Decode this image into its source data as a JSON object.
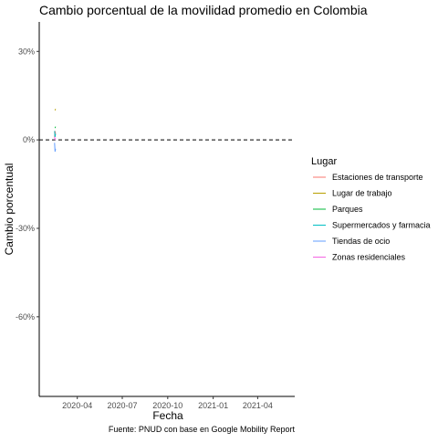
{
  "chart_data": {
    "type": "line",
    "title": "Cambio porcentual de la movilidad promedio en Colombia",
    "xlabel": "Fecha",
    "ylabel": "Cambio porcentual",
    "caption": "Fuente: PNUD con base en Google Mobility Report",
    "x_ticks": [
      "2020-04",
      "2020-07",
      "2020-10",
      "2021-01",
      "2021-04"
    ],
    "y_ticks": [
      "30%",
      "0%",
      "-30%",
      "-60%"
    ],
    "y_tick_values": [
      30,
      0,
      -30,
      -60
    ],
    "xlim": [
      "2020-01-15",
      "2021-06-15"
    ],
    "ylim": [
      -87,
      40
    ],
    "reference_line": {
      "y": 0,
      "style": "dashed"
    },
    "grid": false,
    "legend_title": "Lugar",
    "legend_position": "right",
    "series": [
      {
        "name": "Estaciones de transporte",
        "color": "#F8766D",
        "x": [
          "2020-02-15",
          "2020-02-16",
          "2020-02-17"
        ],
        "y": [
          1,
          3,
          2
        ]
      },
      {
        "name": "Lugar de trabajo",
        "color": "#B79F00",
        "x": [
          "2020-02-16",
          "2020-02-17"
        ],
        "y": [
          10,
          10.5
        ]
      },
      {
        "name": "Parques",
        "color": "#00BA38",
        "x": [
          "2020-02-16",
          "2020-02-17"
        ],
        "y": [
          4,
          4.5
        ]
      },
      {
        "name": "Supermercados y farmacia",
        "color": "#00BFC4",
        "x": [
          "2020-02-15",
          "2020-02-16",
          "2020-02-17"
        ],
        "y": [
          3,
          1,
          2
        ]
      },
      {
        "name": "Tiendas de ocio",
        "color": "#619CFF",
        "x": [
          "2020-02-15",
          "2020-02-16",
          "2020-02-17"
        ],
        "y": [
          -1,
          -4,
          -3
        ]
      },
      {
        "name": "Zonas residenciales",
        "color": "#F564E3",
        "x": [
          "2020-02-15",
          "2020-02-16",
          "2020-02-17"
        ],
        "y": [
          1,
          0,
          0.5
        ]
      }
    ]
  }
}
